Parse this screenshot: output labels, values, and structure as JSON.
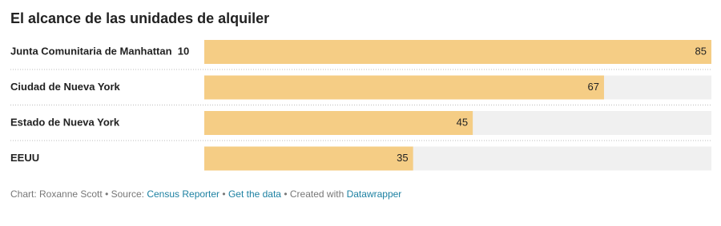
{
  "chart_data": {
    "type": "bar",
    "title": "El alcance de las unidades de alquiler",
    "categories": [
      "Junta Comunitaria de Manhattan  10",
      "Ciudad de Nueva York",
      "Estado de Nueva York",
      "EEUU"
    ],
    "values": [
      85,
      67,
      45,
      35
    ],
    "color": "#f5cd85",
    "background_color": "#f0f0f0",
    "xlim": [
      0,
      85
    ],
    "footer": {
      "byline": "Chart: Roxanne Scott",
      "separator": "•",
      "source_label": "Source:",
      "source": "Census Reporter",
      "get_data": "Get the data",
      "created_with": "Created with",
      "tool": "Datawrapper"
    }
  }
}
